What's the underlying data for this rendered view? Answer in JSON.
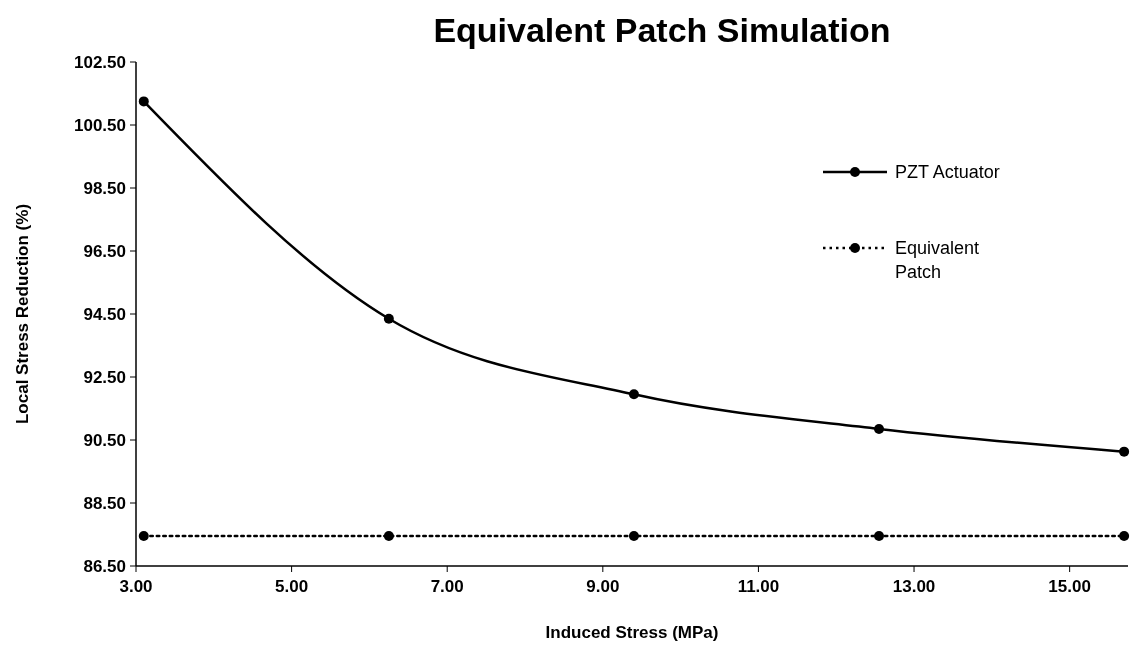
{
  "chart_data": {
    "type": "line",
    "title": "Equivalent Patch Simulation",
    "xlabel": "Induced Stress (MPa)",
    "ylabel": "Local Stress Reduction (%)",
    "x": [
      3.1,
      6.25,
      9.4,
      12.55,
      15.7
    ],
    "series": [
      {
        "name": "PZT Actuator",
        "color": "#000000",
        "values": [
          101.25,
          94.35,
          91.95,
          90.85,
          90.13
        ],
        "line_style": "solid"
      },
      {
        "name": "Equivalent Patch",
        "color": "#000000",
        "values": [
          87.45,
          87.45,
          87.45,
          87.45,
          87.45
        ],
        "line_style": "dotted"
      }
    ],
    "xlim": [
      3,
      15.75
    ],
    "ylim": [
      86.5,
      102.5
    ],
    "xticks": [
      {
        "value": 3,
        "label": "3.00"
      },
      {
        "value": 5,
        "label": "5.00"
      },
      {
        "value": 7,
        "label": "7.00"
      },
      {
        "value": 9,
        "label": "9.00"
      },
      {
        "value": 11,
        "label": "11.00"
      },
      {
        "value": 13,
        "label": "13.00"
      },
      {
        "value": 15,
        "label": "15.00"
      }
    ],
    "yticks": [
      {
        "value": 86.5,
        "label": "86.50"
      },
      {
        "value": 88.5,
        "label": "88.50"
      },
      {
        "value": 90.5,
        "label": "90.50"
      },
      {
        "value": 92.5,
        "label": "92.50"
      },
      {
        "value": 94.5,
        "label": "94.50"
      },
      {
        "value": 96.5,
        "label": "96.50"
      },
      {
        "value": 98.5,
        "label": "98.50"
      },
      {
        "value": 100.5,
        "label": "100.50"
      },
      {
        "value": 102.5,
        "label": "102.50"
      }
    ],
    "marker": "circle",
    "legend": "top right"
  }
}
